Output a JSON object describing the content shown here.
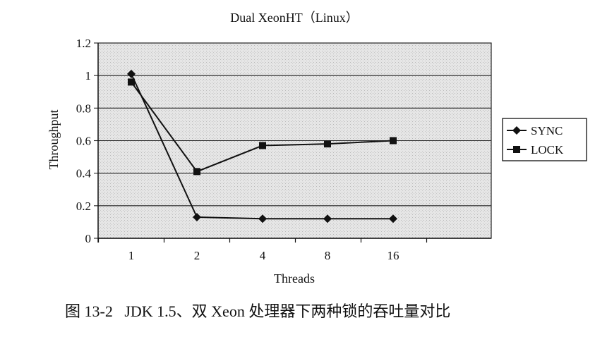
{
  "chart_data": {
    "type": "line",
    "title": "Dual XeonHT（Linux）",
    "xlabel": "Threads",
    "ylabel": "Throughput",
    "categories": [
      "1",
      "2",
      "4",
      "8",
      "16"
    ],
    "ylim": [
      0,
      1.2
    ],
    "yticks": [
      "0",
      "0.2",
      "0.4",
      "0.6",
      "0.8",
      "1",
      "1.2"
    ],
    "grid": true,
    "legend_position": "right",
    "series": [
      {
        "name": "SYNC",
        "marker": "diamond",
        "values": [
          1.01,
          0.13,
          0.12,
          0.12,
          0.12
        ]
      },
      {
        "name": "LOCK",
        "marker": "square",
        "values": [
          0.96,
          0.41,
          0.57,
          0.58,
          0.6
        ]
      }
    ]
  },
  "caption": "图 13-2   JDK 1.5、双 Xeon 处理器下两种锁的吞吐量对比"
}
